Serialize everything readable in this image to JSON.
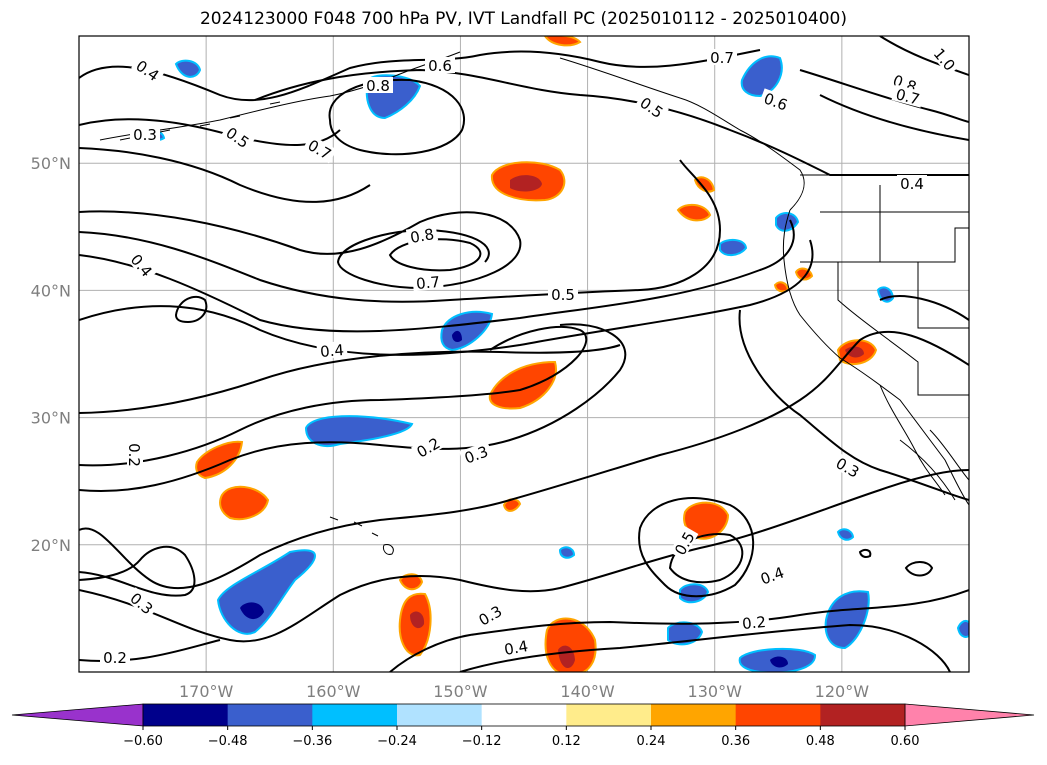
{
  "title": "2024123000 F048 700 hPa PV, IVT Landfall PC (2025010112 - 2025010400)",
  "map": {
    "projection": "PlateCarree",
    "lon_range": [
      -180,
      -110
    ],
    "lat_range": [
      10,
      60
    ],
    "gridlines": true,
    "lat_ticks": [
      {
        "value": 20,
        "label": "20°N"
      },
      {
        "value": 30,
        "label": "30°N"
      },
      {
        "value": 40,
        "label": "40°N"
      },
      {
        "value": 50,
        "label": "50°N"
      }
    ],
    "lon_ticks": [
      {
        "value": -170,
        "label": "170°W"
      },
      {
        "value": -160,
        "label": "160°W"
      },
      {
        "value": -150,
        "label": "150°W"
      },
      {
        "value": -140,
        "label": "140°W"
      },
      {
        "value": -130,
        "label": "130°W"
      },
      {
        "value": -120,
        "label": "120°W"
      }
    ]
  },
  "contour_labels": [
    "0.4",
    "0.6",
    "0.8",
    "0.7",
    "1.0",
    "0.8",
    "0.7",
    "0.5",
    "0.6",
    "0.5",
    "0.7",
    "0.3",
    "0.4",
    "0.8",
    "0.7",
    "0.5",
    "0.4",
    "0.4",
    "0.2",
    "0.2",
    "0.3",
    "0.3",
    "0.5",
    "0.4",
    "0.3",
    "0.2",
    "0.4",
    "0.3",
    "0.2"
  ],
  "colorbar": {
    "ticks": [
      "−0.60",
      "−0.48",
      "−0.36",
      "−0.24",
      "−0.12",
      "0.12",
      "0.24",
      "0.36",
      "0.48",
      "0.60"
    ],
    "colors": [
      "#9932cc",
      "#00008b",
      "#3a5fcd",
      "#00bfff",
      "#b0e2ff",
      "#ffffff",
      "#ffec8b",
      "#ffa500",
      "#ff4500",
      "#b22222",
      "#ff82ab"
    ],
    "extend": "both"
  },
  "styles": {
    "land_line_color": "#000000",
    "grid_color": "#b0b0b0",
    "tick_color": "#7f7f7f"
  }
}
